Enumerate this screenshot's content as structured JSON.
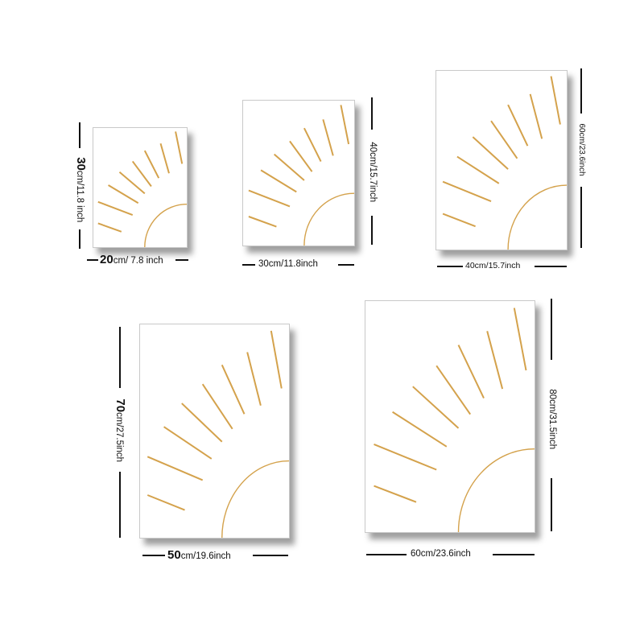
{
  "accent_color": "#d4a24c",
  "sizes": [
    {
      "width_value": "20",
      "width_unit": "cm/ 7.8 inch",
      "height_value": "30",
      "height_unit": "cm/11.8 inch"
    },
    {
      "width_label": "30cm/11.8inch",
      "height_label": "40cm/15.7inch"
    },
    {
      "width_label": "40cm/15.7inch",
      "height_label": "60cm/23.6inch"
    },
    {
      "width_value": "50",
      "width_unit": "cm/19.6inch",
      "height_value": "70",
      "height_unit": "cm/27.5inch"
    },
    {
      "width_label": "60cm/23.6inch",
      "height_label": "80cm/31.5inch"
    }
  ],
  "artwork": "sun-rays-icon"
}
